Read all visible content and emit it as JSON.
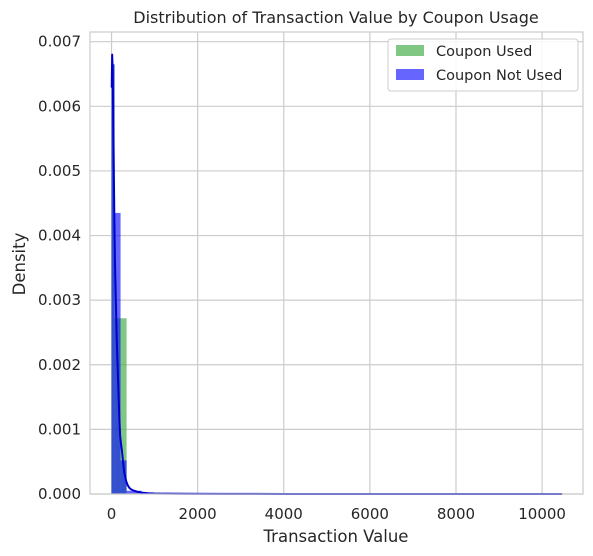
{
  "chart_data": {
    "type": "histogram",
    "title": "Distribution of Transaction Value by Coupon Usage",
    "xlabel": "Transaction Value",
    "ylabel": "Density",
    "xlim": [
      -500,
      10950
    ],
    "ylim": [
      0,
      0.00715
    ],
    "xticks": [
      0,
      2000,
      4000,
      6000,
      8000,
      10000
    ],
    "yticks": [
      0.0,
      0.001,
      0.002,
      0.003,
      0.004,
      0.005,
      0.006,
      0.007
    ],
    "ytick_format": 3,
    "grid": true,
    "legend_position": "top-right",
    "series": [
      {
        "name": "Coupon Used",
        "color": "#4caf50",
        "opacity": 0.7,
        "bins": [
          {
            "x0": 0,
            "x1": 70,
            "density": 0.00665
          },
          {
            "x0": 70,
            "x1": 210,
            "density": 0.00272
          },
          {
            "x0": 210,
            "x1": 350,
            "density": 0.00272
          }
        ]
      },
      {
        "name": "Coupon Not Used",
        "color": "#0000ff",
        "opacity": 0.6,
        "bins": [
          {
            "x0": 0,
            "x1": 70,
            "density": 0.00665
          },
          {
            "x0": 70,
            "x1": 210,
            "density": 0.00435
          },
          {
            "x0": 210,
            "x1": 350,
            "density": 0.00052
          },
          {
            "x0": 350,
            "x1": 700,
            "density": 5e-05
          },
          {
            "x0": 700,
            "x1": 1200,
            "density": 1.2e-05
          },
          {
            "x0": 1200,
            "x1": 10450,
            "density": 4e-06
          }
        ],
        "kde": {
          "color": "#0000cc",
          "x": [
            5,
            15,
            25,
            35,
            45,
            55,
            65,
            80,
            100,
            120,
            140,
            160,
            180,
            200,
            220,
            240,
            260,
            280,
            300,
            340,
            380,
            420,
            460,
            520,
            600,
            700,
            850,
            1000,
            1300,
            1700,
            2500,
            4000,
            6000,
            8000,
            10450
          ],
          "y": [
            0.0063,
            0.0068,
            0.0066,
            0.0061,
            0.0055,
            0.0049,
            0.0043,
            0.0036,
            0.003,
            0.0024,
            0.002,
            0.0016,
            0.0012,
            0.0009,
            0.00078,
            0.00068,
            0.00055,
            0.00042,
            0.00032,
            0.0002,
            0.00013,
            9e-05,
            7e-05,
            5e-05,
            3.5e-05,
            2.2e-05,
            1.2e-05,
            8e-06,
            5e-06,
            3e-06,
            2e-06,
            1e-06,
            8e-07,
            6e-07,
            5e-07
          ]
        }
      }
    ]
  }
}
